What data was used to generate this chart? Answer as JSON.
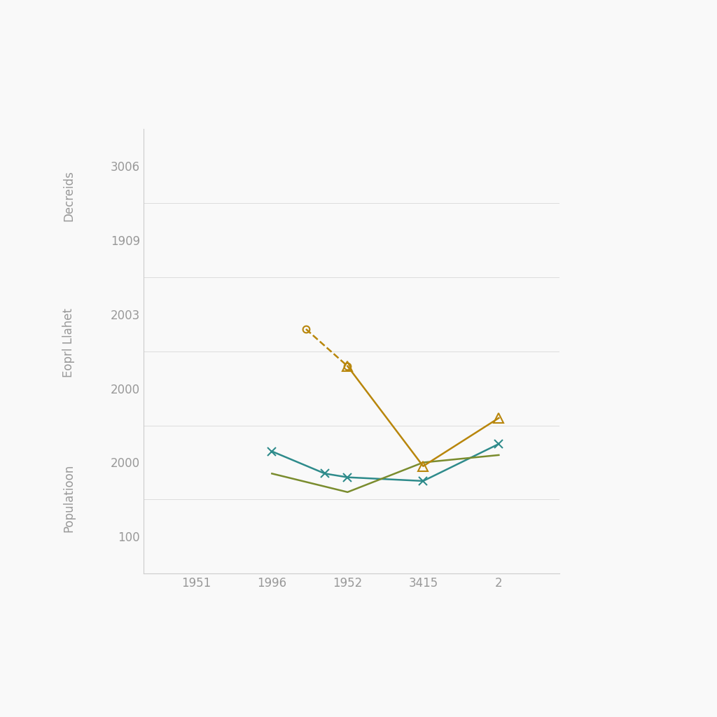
{
  "background_color": "#f9f9f9",
  "plot_bg": "#f9f9f9",
  "ylabel_top": "Decreids",
  "ylabel_mid": "Eoprl Llahet",
  "ylabel_bot": "Populatioon",
  "axis_color": "#cccccc",
  "tick_color": "#999999",
  "label_color": "#999999",
  "font_size": 12,
  "xtick_positions": [
    1,
    2,
    3,
    4,
    5
  ],
  "xtick_labels": [
    "1951",
    "1996",
    "1952",
    "3415",
    "2"
  ],
  "xlim": [
    0.3,
    5.8
  ],
  "ylim": [
    0,
    6
  ],
  "ytick_positions": [
    0.5,
    1.5,
    2.5,
    3.5,
    4.5,
    5.5
  ],
  "ytick_labels": [
    "100",
    "2000",
    "2000",
    "2003",
    "1909",
    "3006"
  ],
  "hlines": [
    1.0,
    2.0,
    3.0,
    4.0,
    5.0
  ],
  "lines": [
    {
      "name": "blue",
      "color": "#2e8b8b",
      "style": "solid",
      "marker": "x",
      "x": [
        2,
        2.7,
        3,
        4,
        5
      ],
      "y": [
        1.65,
        1.35,
        1.3,
        1.25,
        1.75
      ]
    },
    {
      "name": "olive",
      "color": "#7a8c2e",
      "style": "solid",
      "marker": null,
      "x": [
        2,
        3,
        4,
        5
      ],
      "y": [
        1.35,
        1.1,
        1.5,
        1.6
      ]
    },
    {
      "name": "gold_solid",
      "color": "#b8860b",
      "style": "solid",
      "marker": "^",
      "x": [
        3,
        4,
        5
      ],
      "y": [
        2.8,
        1.45,
        2.1
      ]
    },
    {
      "name": "gold_dashed",
      "color": "#b8860b",
      "style": "dashed",
      "marker": "o",
      "x": [
        2.45,
        3
      ],
      "y": [
        3.3,
        2.8
      ]
    }
  ]
}
